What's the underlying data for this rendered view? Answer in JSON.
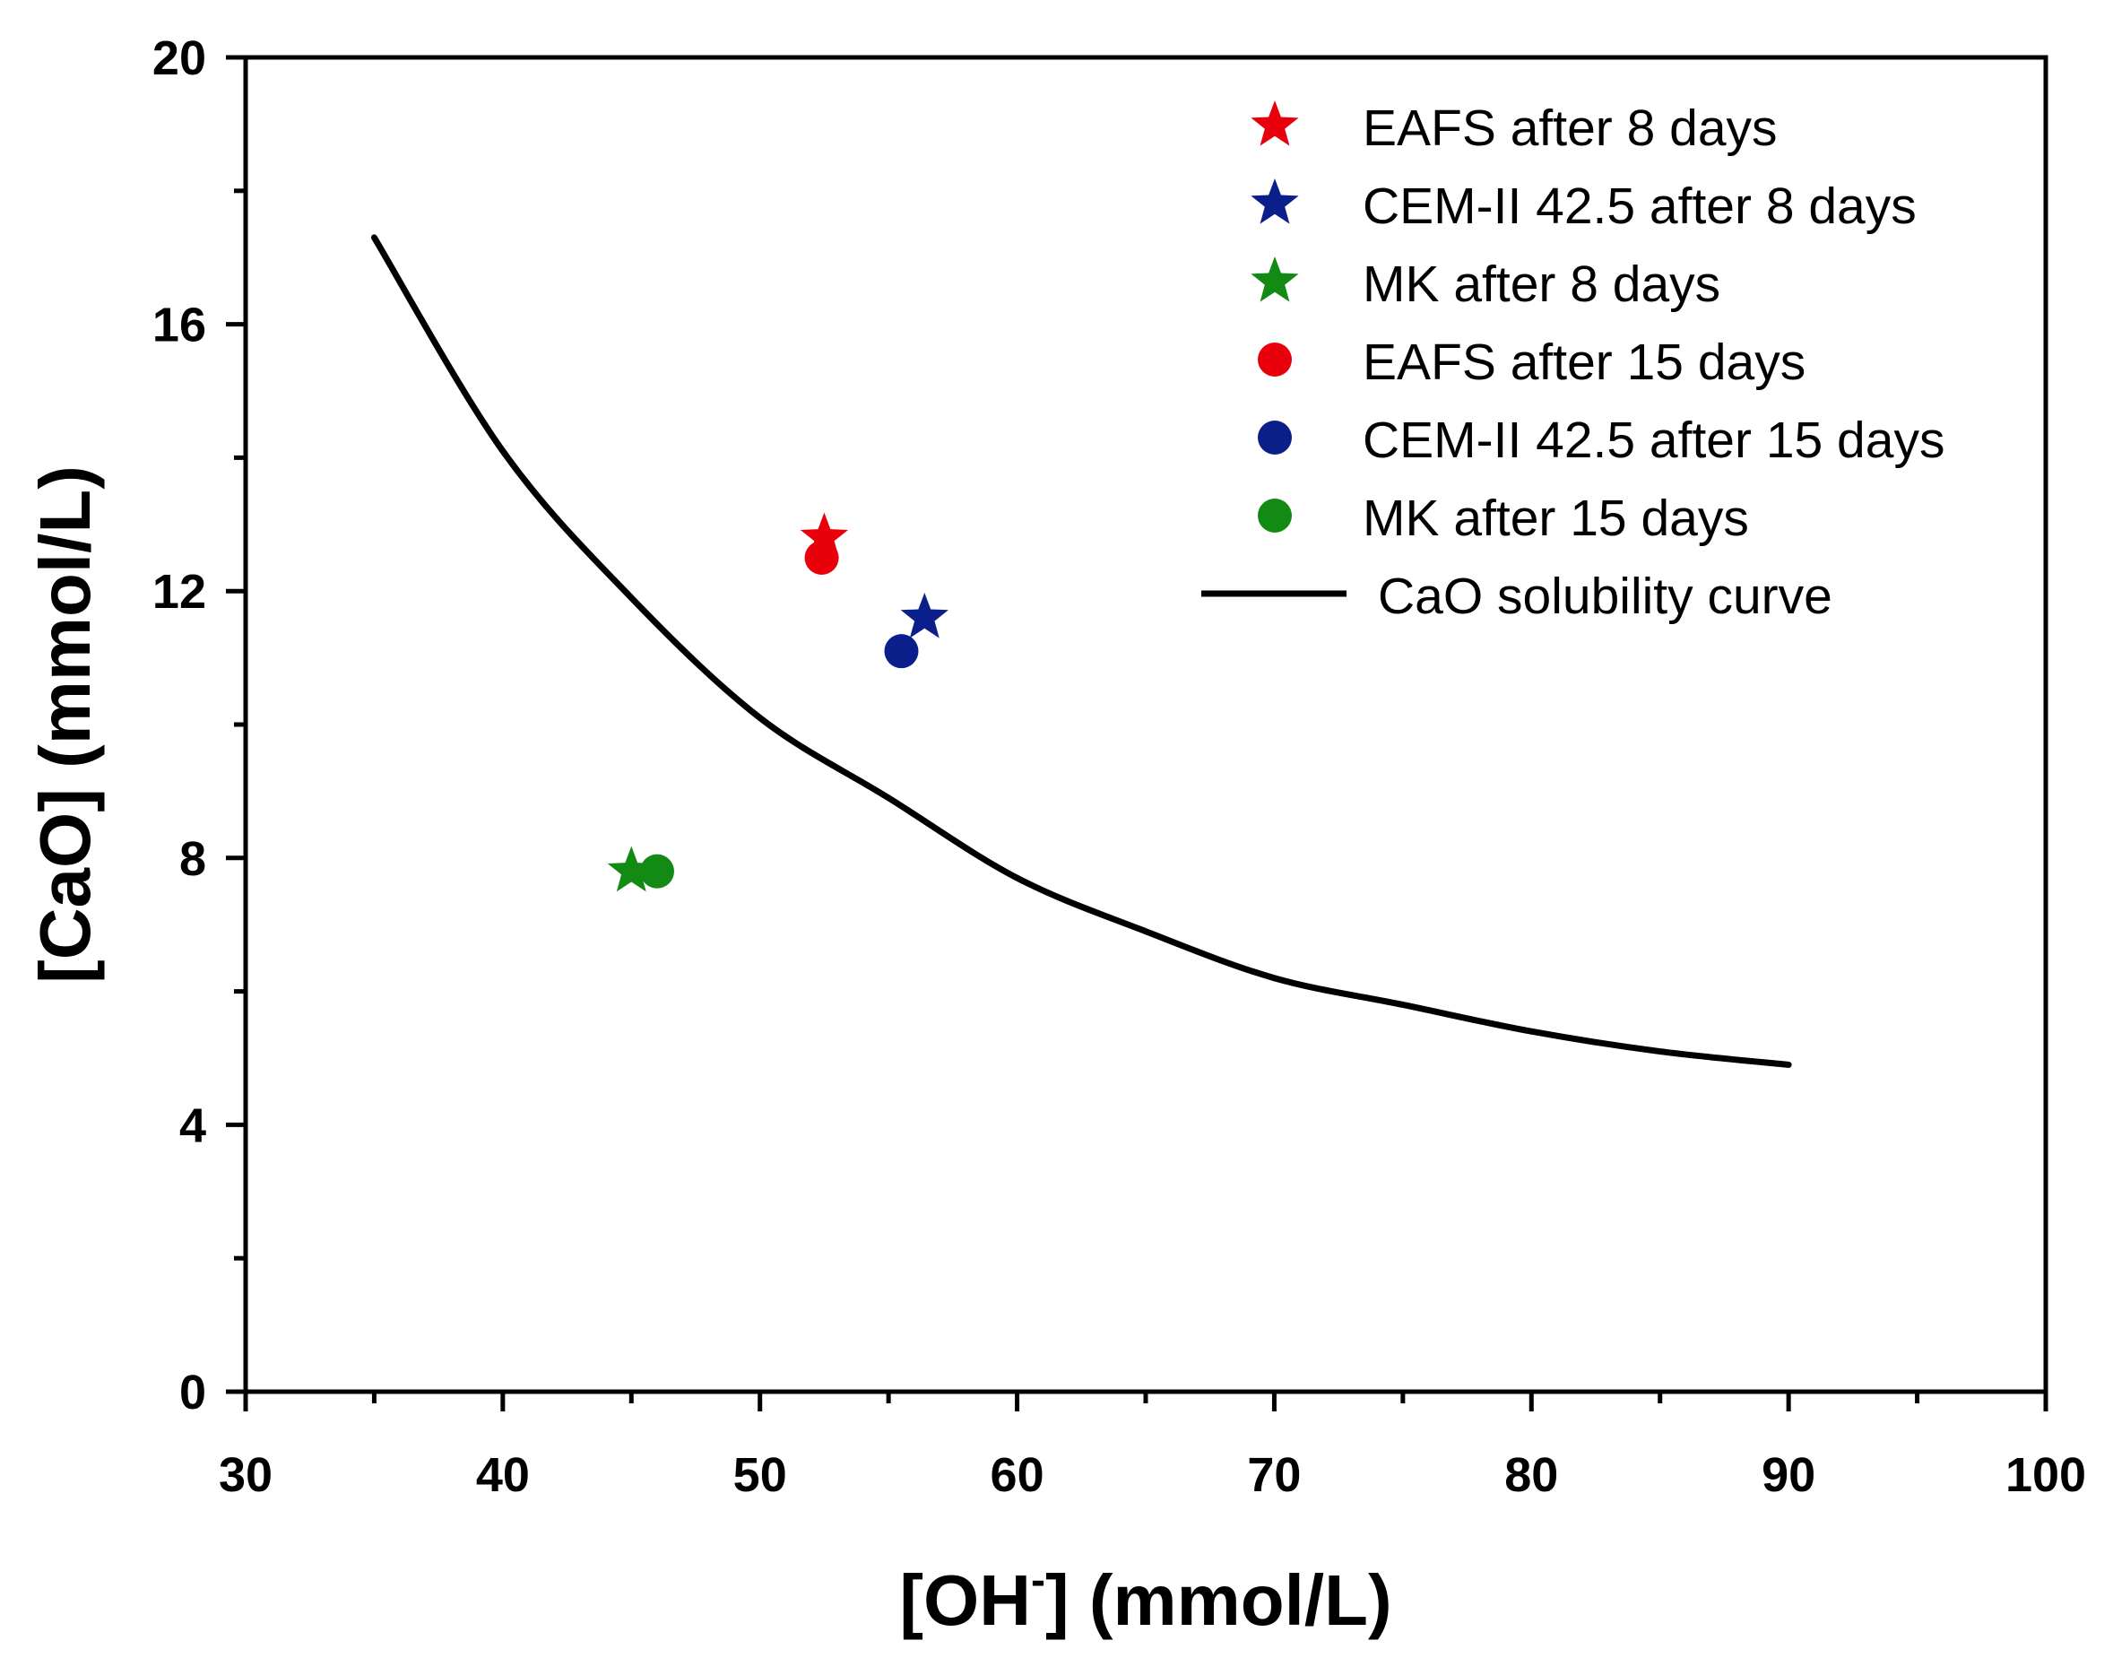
{
  "chart_data": {
    "type": "scatter",
    "xlabel": {
      "main": "[OH",
      "sup": "-",
      "rest": "] (mmol/L)"
    },
    "ylabel": "[CaO] (mmol/L)",
    "xlim": [
      30,
      100
    ],
    "ylim": [
      0,
      20
    ],
    "x_ticks": [
      "30",
      "40",
      "50",
      "60",
      "70",
      "80",
      "90",
      "100"
    ],
    "y_ticks": [
      "0",
      "4",
      "8",
      "12",
      "16",
      "20"
    ],
    "x_minor_step": 5,
    "y_minor_step": 2,
    "series": [
      {
        "name": "EAFS after 8 days",
        "marker": "star",
        "color": "#e8000b",
        "points": [
          [
            52.5,
            12.8
          ]
        ]
      },
      {
        "name": "CEM-II 42.5 after 8 days",
        "marker": "star",
        "color": "#0b1f8a",
        "points": [
          [
            56.4,
            11.6
          ]
        ]
      },
      {
        "name": "MK after 8 days",
        "marker": "star",
        "color": "#138a13",
        "points": [
          [
            45.0,
            7.8
          ]
        ]
      },
      {
        "name": "EAFS after 15 days",
        "marker": "circle",
        "color": "#e8000b",
        "points": [
          [
            52.4,
            12.5
          ]
        ]
      },
      {
        "name": "CEM-II 42.5 after 15 days",
        "marker": "circle",
        "color": "#0b1f8a",
        "points": [
          [
            55.5,
            11.1
          ]
        ]
      },
      {
        "name": "MK after 15 days",
        "marker": "circle",
        "color": "#138a13",
        "points": [
          [
            46.0,
            7.8
          ]
        ]
      }
    ],
    "curve": {
      "name": "CaO solubility curve",
      "color": "#000000",
      "points": [
        [
          35,
          17.3
        ],
        [
          40,
          14.1
        ],
        [
          45,
          11.9
        ],
        [
          50,
          10.1
        ],
        [
          55,
          8.9
        ],
        [
          60,
          7.7
        ],
        [
          65,
          6.9
        ],
        [
          70,
          6.2
        ],
        [
          75,
          5.8
        ],
        [
          80,
          5.4
        ],
        [
          85,
          5.1
        ],
        [
          90,
          4.9
        ]
      ]
    },
    "legend_position": "top-right"
  }
}
